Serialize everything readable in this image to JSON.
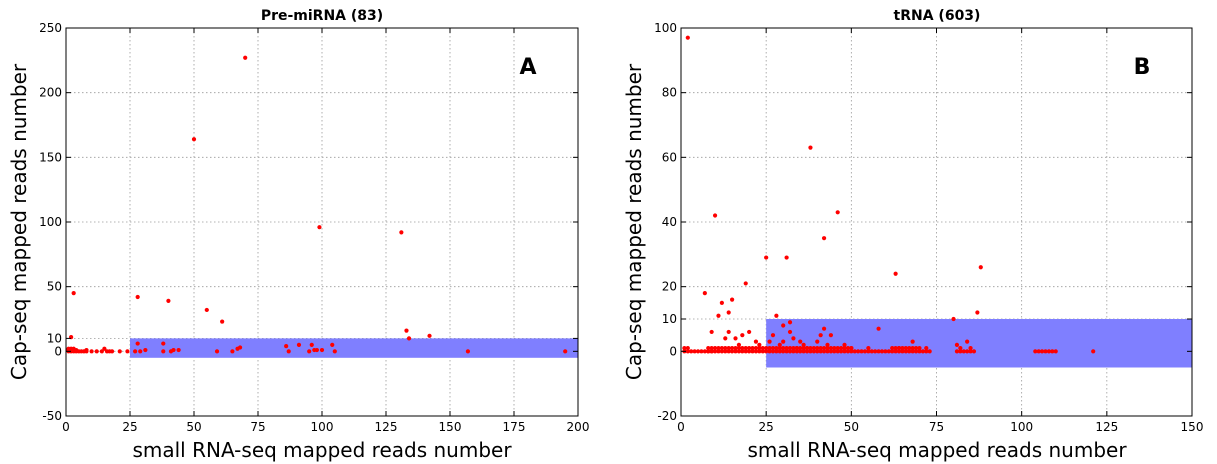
{
  "chart_data": [
    {
      "type": "scatter",
      "title": "Pre-miRNA (83)",
      "panel_letter": "A",
      "xlabel": "small RNA-seq mapped reads number",
      "ylabel": "Cap-seq mapped reads number",
      "xlim": [
        0,
        200
      ],
      "ylim": [
        -50,
        250
      ],
      "xticks": [
        0,
        25,
        50,
        75,
        100,
        125,
        150,
        175,
        200
      ],
      "yticks": [
        -50,
        0,
        10,
        50,
        100,
        150,
        200,
        250
      ],
      "grid": true,
      "marker_color": "#ff0000",
      "highlight_region": {
        "x": [
          25,
          200
        ],
        "y": [
          -5,
          10
        ],
        "color": "#7f7fff"
      },
      "points": [
        [
          1,
          0
        ],
        [
          1,
          1
        ],
        [
          1,
          2
        ],
        [
          2,
          0
        ],
        [
          2,
          2
        ],
        [
          2,
          11
        ],
        [
          3,
          0
        ],
        [
          3,
          1
        ],
        [
          3,
          2
        ],
        [
          3,
          45
        ],
        [
          4,
          0
        ],
        [
          4,
          1
        ],
        [
          5,
          0
        ],
        [
          6,
          0
        ],
        [
          7,
          0
        ],
        [
          8,
          0
        ],
        [
          8,
          1
        ],
        [
          10,
          0
        ],
        [
          12,
          0
        ],
        [
          14,
          0
        ],
        [
          15,
          2
        ],
        [
          16,
          0
        ],
        [
          17,
          0
        ],
        [
          18,
          0
        ],
        [
          21,
          0
        ],
        [
          24,
          0
        ],
        [
          27,
          0
        ],
        [
          28,
          6
        ],
        [
          28,
          42
        ],
        [
          29,
          0
        ],
        [
          31,
          1
        ],
        [
          38,
          6
        ],
        [
          38,
          0
        ],
        [
          40,
          39
        ],
        [
          41,
          0
        ],
        [
          42,
          1
        ],
        [
          44,
          1
        ],
        [
          50,
          164
        ],
        [
          55,
          32
        ],
        [
          59,
          0
        ],
        [
          61,
          23
        ],
        [
          65,
          0
        ],
        [
          67,
          2
        ],
        [
          68,
          3
        ],
        [
          70,
          227
        ],
        [
          86,
          4
        ],
        [
          87,
          0
        ],
        [
          91,
          5
        ],
        [
          95,
          0
        ],
        [
          96,
          5
        ],
        [
          97,
          1
        ],
        [
          98,
          1
        ],
        [
          99,
          96
        ],
        [
          100,
          1
        ],
        [
          104,
          5
        ],
        [
          105,
          0
        ],
        [
          131,
          92
        ],
        [
          133,
          16
        ],
        [
          134,
          10
        ],
        [
          142,
          12
        ],
        [
          157,
          0
        ],
        [
          195,
          0
        ]
      ]
    },
    {
      "type": "scatter",
      "title": "tRNA (603)",
      "panel_letter": "B",
      "xlabel": "small RNA-seq mapped reads number",
      "ylabel": "Cap-seq mapped reads number",
      "xlim": [
        0,
        150
      ],
      "ylim": [
        -20,
        100
      ],
      "xticks": [
        0,
        25,
        50,
        75,
        100,
        125,
        150
      ],
      "yticks": [
        -20,
        0,
        10,
        20,
        40,
        60,
        80,
        100
      ],
      "grid": true,
      "marker_color": "#ff0000",
      "highlight_region": {
        "x": [
          25,
          150
        ],
        "y": [
          -5,
          10
        ],
        "color": "#7f7fff"
      },
      "points": [
        [
          2,
          97
        ],
        [
          7,
          18
        ],
        [
          9,
          6
        ],
        [
          10,
          42
        ],
        [
          11,
          11
        ],
        [
          12,
          15
        ],
        [
          13,
          4
        ],
        [
          14,
          12
        ],
        [
          14,
          6
        ],
        [
          15,
          16
        ],
        [
          16,
          4
        ],
        [
          17,
          2
        ],
        [
          18,
          5
        ],
        [
          19,
          21
        ],
        [
          20,
          6
        ],
        [
          22,
          3
        ],
        [
          23,
          2
        ],
        [
          25,
          29
        ],
        [
          26,
          3
        ],
        [
          27,
          5
        ],
        [
          28,
          11
        ],
        [
          29,
          2
        ],
        [
          30,
          3
        ],
        [
          30,
          8
        ],
        [
          31,
          29
        ],
        [
          32,
          6
        ],
        [
          32,
          9
        ],
        [
          33,
          4
        ],
        [
          34,
          1
        ],
        [
          35,
          3
        ],
        [
          36,
          2
        ],
        [
          37,
          1
        ],
        [
          38,
          63
        ],
        [
          40,
          3
        ],
        [
          41,
          5
        ],
        [
          42,
          35
        ],
        [
          42,
          7
        ],
        [
          43,
          2
        ],
        [
          44,
          5
        ],
        [
          46,
          43
        ],
        [
          48,
          2
        ],
        [
          50,
          1
        ],
        [
          55,
          1
        ],
        [
          58,
          7
        ],
        [
          63,
          24
        ],
        [
          64,
          1
        ],
        [
          68,
          3
        ],
        [
          72,
          1
        ],
        [
          80,
          10
        ],
        [
          81,
          2
        ],
        [
          82,
          1
        ],
        [
          84,
          3
        ],
        [
          85,
          1
        ],
        [
          87,
          12
        ],
        [
          88,
          26
        ]
      ],
      "zero_runs": [
        [
          1,
          3
        ],
        [
          4,
          9
        ],
        [
          8,
          73
        ],
        [
          81,
          86
        ],
        [
          104,
          110
        ]
      ],
      "one_runs": [
        [
          8,
          50
        ],
        [
          62,
          70
        ]
      ],
      "extra_points": [
        [
          121,
          0
        ],
        [
          1,
          1
        ],
        [
          2,
          1
        ]
      ]
    }
  ]
}
